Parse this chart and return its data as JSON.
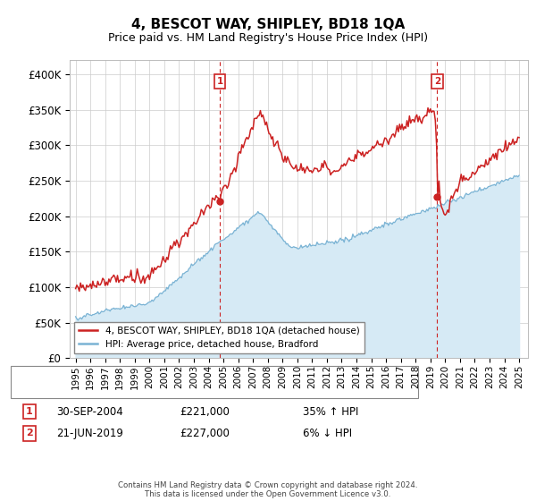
{
  "title": "4, BESCOT WAY, SHIPLEY, BD18 1QA",
  "subtitle": "Price paid vs. HM Land Registry's House Price Index (HPI)",
  "ylim": [
    0,
    420000
  ],
  "yticks": [
    0,
    50000,
    100000,
    150000,
    200000,
    250000,
    300000,
    350000,
    400000
  ],
  "ytick_labels": [
    "£0",
    "£50K",
    "£100K",
    "£150K",
    "£200K",
    "£250K",
    "£300K",
    "£350K",
    "£400K"
  ],
  "hpi_color": "#7ab3d4",
  "hpi_fill_color": "#d6eaf5",
  "price_color": "#cc2222",
  "sale1_year": 2004.75,
  "sale1_price": 221000,
  "sale2_year": 2019.46,
  "sale2_price": 227000,
  "legend_label_price": "4, BESCOT WAY, SHIPLEY, BD18 1QA (detached house)",
  "legend_label_hpi": "HPI: Average price, detached house, Bradford",
  "footer": "Contains HM Land Registry data © Crown copyright and database right 2024.\nThis data is licensed under the Open Government Licence v3.0.",
  "annotation1_label": "1",
  "annotation2_label": "2",
  "row1_date": "30-SEP-2004",
  "row1_price": "£221,000",
  "row1_pct": "35% ↑ HPI",
  "row2_date": "21-JUN-2019",
  "row2_price": "£227,000",
  "row2_pct": "6% ↓ HPI"
}
